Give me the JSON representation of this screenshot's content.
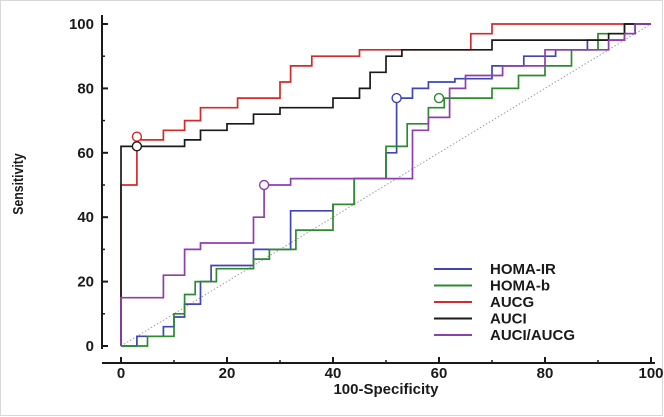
{
  "chart_data": {
    "type": "line",
    "xlabel": "100-Specificity",
    "ylabel": "Sensitivity",
    "xlim": [
      0,
      100
    ],
    "ylim": [
      0,
      100
    ],
    "xticks": [
      0,
      20,
      40,
      60,
      80,
      100
    ],
    "yticks": [
      0,
      20,
      40,
      60,
      80,
      100
    ],
    "grid": false,
    "legend_position": "bottom-right",
    "reference_line": {
      "from": [
        0,
        0
      ],
      "to": [
        100,
        100
      ],
      "style": "dotted",
      "color": "#9a9a9a"
    },
    "series": [
      {
        "name": "HOMA-IR",
        "color": "#3f46b4",
        "points": [
          [
            0,
            0
          ],
          [
            3,
            0
          ],
          [
            3,
            3
          ],
          [
            8,
            3
          ],
          [
            8,
            6
          ],
          [
            10,
            6
          ],
          [
            10,
            9
          ],
          [
            12,
            9
          ],
          [
            12,
            13
          ],
          [
            15,
            13
          ],
          [
            15,
            20
          ],
          [
            17,
            20
          ],
          [
            17,
            25
          ],
          [
            25,
            25
          ],
          [
            25,
            30
          ],
          [
            32,
            30
          ],
          [
            32,
            42
          ],
          [
            40,
            42
          ],
          [
            40,
            44
          ],
          [
            44,
            44
          ],
          [
            44,
            52
          ],
          [
            50,
            52
          ],
          [
            50,
            60
          ],
          [
            52,
            60
          ],
          [
            52,
            77
          ],
          [
            55,
            77
          ],
          [
            55,
            80
          ],
          [
            58,
            80
          ],
          [
            58,
            82
          ],
          [
            63,
            82
          ],
          [
            63,
            83
          ],
          [
            70,
            83
          ],
          [
            70,
            87
          ],
          [
            76,
            87
          ],
          [
            76,
            90
          ],
          [
            82,
            90
          ],
          [
            82,
            92
          ],
          [
            88,
            92
          ],
          [
            88,
            95
          ],
          [
            95,
            95
          ],
          [
            95,
            97
          ],
          [
            97,
            97
          ],
          [
            97,
            100
          ],
          [
            100,
            100
          ]
        ]
      },
      {
        "name": "HOMA-b",
        "color": "#2e8a2e",
        "points": [
          [
            0,
            0
          ],
          [
            5,
            0
          ],
          [
            5,
            3
          ],
          [
            10,
            3
          ],
          [
            10,
            10
          ],
          [
            12,
            10
          ],
          [
            12,
            16
          ],
          [
            14,
            16
          ],
          [
            14,
            20
          ],
          [
            18,
            20
          ],
          [
            18,
            24
          ],
          [
            25,
            24
          ],
          [
            25,
            27
          ],
          [
            28,
            27
          ],
          [
            28,
            30
          ],
          [
            33,
            30
          ],
          [
            33,
            36
          ],
          [
            40,
            36
          ],
          [
            40,
            44
          ],
          [
            44,
            44
          ],
          [
            44,
            52
          ],
          [
            50,
            52
          ],
          [
            50,
            62
          ],
          [
            54,
            62
          ],
          [
            54,
            69
          ],
          [
            58,
            69
          ],
          [
            58,
            74
          ],
          [
            61,
            74
          ],
          [
            61,
            77
          ],
          [
            70,
            77
          ],
          [
            70,
            80
          ],
          [
            75,
            80
          ],
          [
            75,
            84
          ],
          [
            80,
            84
          ],
          [
            80,
            87
          ],
          [
            85,
            87
          ],
          [
            85,
            92
          ],
          [
            90,
            92
          ],
          [
            90,
            97
          ],
          [
            95,
            97
          ],
          [
            95,
            100
          ],
          [
            100,
            100
          ]
        ]
      },
      {
        "name": "AUCG",
        "color": "#d42a2a",
        "points": [
          [
            0,
            0
          ],
          [
            0,
            50
          ],
          [
            3,
            50
          ],
          [
            3,
            64
          ],
          [
            8,
            64
          ],
          [
            8,
            67
          ],
          [
            12,
            67
          ],
          [
            12,
            70
          ],
          [
            15,
            70
          ],
          [
            15,
            74
          ],
          [
            22,
            74
          ],
          [
            22,
            77
          ],
          [
            30,
            77
          ],
          [
            30,
            82
          ],
          [
            32,
            82
          ],
          [
            32,
            87
          ],
          [
            36,
            87
          ],
          [
            36,
            90
          ],
          [
            45,
            90
          ],
          [
            45,
            92
          ],
          [
            66,
            92
          ],
          [
            66,
            97
          ],
          [
            70,
            97
          ],
          [
            70,
            100
          ],
          [
            100,
            100
          ]
        ]
      },
      {
        "name": "AUCI",
        "color": "#1a1a1a",
        "points": [
          [
            0,
            0
          ],
          [
            0,
            62
          ],
          [
            12,
            62
          ],
          [
            12,
            64
          ],
          [
            15,
            64
          ],
          [
            15,
            67
          ],
          [
            20,
            67
          ],
          [
            20,
            69
          ],
          [
            25,
            69
          ],
          [
            25,
            72
          ],
          [
            30,
            72
          ],
          [
            30,
            74
          ],
          [
            40,
            74
          ],
          [
            40,
            77
          ],
          [
            45,
            77
          ],
          [
            45,
            80
          ],
          [
            47,
            80
          ],
          [
            47,
            85
          ],
          [
            50,
            85
          ],
          [
            50,
            90
          ],
          [
            53,
            90
          ],
          [
            53,
            92
          ],
          [
            70,
            92
          ],
          [
            70,
            95
          ],
          [
            92,
            95
          ],
          [
            92,
            97
          ],
          [
            95,
            97
          ],
          [
            95,
            100
          ],
          [
            100,
            100
          ]
        ]
      },
      {
        "name": "AUCI/AUCG",
        "color": "#8e3fae",
        "points": [
          [
            0,
            0
          ],
          [
            0,
            15
          ],
          [
            8,
            15
          ],
          [
            8,
            22
          ],
          [
            12,
            22
          ],
          [
            12,
            30
          ],
          [
            15,
            30
          ],
          [
            15,
            32
          ],
          [
            25,
            32
          ],
          [
            25,
            40
          ],
          [
            27,
            40
          ],
          [
            27,
            50
          ],
          [
            32,
            50
          ],
          [
            32,
            52
          ],
          [
            55,
            52
          ],
          [
            55,
            67
          ],
          [
            58,
            67
          ],
          [
            58,
            71
          ],
          [
            62,
            71
          ],
          [
            62,
            80
          ],
          [
            65,
            80
          ],
          [
            65,
            84
          ],
          [
            72,
            84
          ],
          [
            72,
            87
          ],
          [
            80,
            87
          ],
          [
            80,
            92
          ],
          [
            92,
            92
          ],
          [
            92,
            95
          ],
          [
            95,
            95
          ],
          [
            95,
            97
          ],
          [
            97,
            97
          ],
          [
            97,
            100
          ],
          [
            100,
            100
          ]
        ]
      }
    ],
    "markers": [
      {
        "series": "AUCG",
        "x": 3,
        "y": 65
      },
      {
        "series": "AUCI",
        "x": 3,
        "y": 62
      },
      {
        "series": "HOMA-IR",
        "x": 52,
        "y": 77
      },
      {
        "series": "HOMA-b",
        "x": 60,
        "y": 77
      },
      {
        "series": "AUCI/AUCG",
        "x": 27,
        "y": 50
      }
    ]
  }
}
